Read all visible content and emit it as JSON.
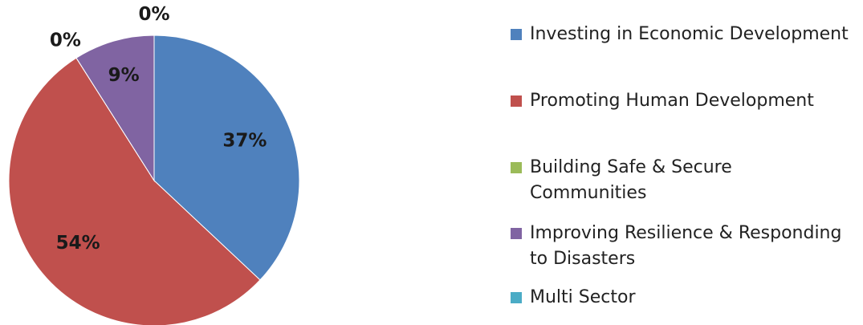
{
  "chart_data": {
    "type": "pie",
    "categories": [
      "Investing in Economic Development",
      "Promoting Human Development",
      "Building Safe & Secure Communities",
      "Improving Resilience & Responding to Disasters",
      "Multi Sector"
    ],
    "values": [
      37,
      54,
      0,
      9,
      0
    ],
    "value_labels": [
      "37%",
      "54%",
      "0%",
      "9%",
      "0%"
    ],
    "colors": [
      "#4f81bd",
      "#c0504d",
      "#9bbb59",
      "#8064a2",
      "#4bacc6"
    ],
    "legend": "right"
  }
}
